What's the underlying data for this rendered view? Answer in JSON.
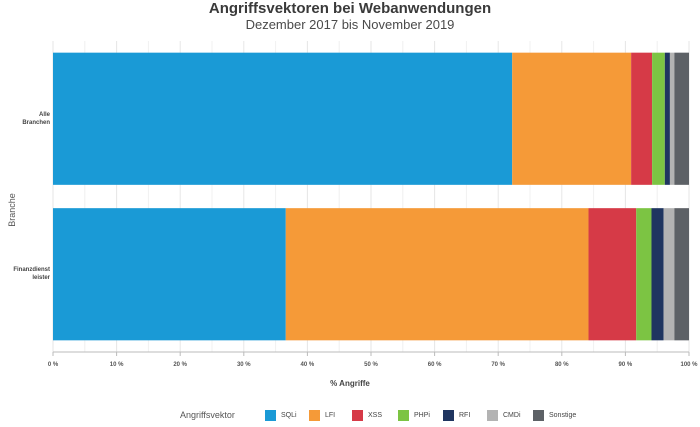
{
  "chart_data": {
    "type": "bar",
    "orientation": "horizontal",
    "stacked": true,
    "title": "Angriffsvektoren bei Webanwendungen",
    "subtitle": "Dezember 2017 bis November 2019",
    "xlabel": "% Angriffe",
    "ylabel": "Branche",
    "categories": [
      "Alle\nBranchen",
      "Finanzdienst\nleister"
    ],
    "xlim": [
      0,
      100
    ],
    "x_ticks": [
      "0 %",
      "10 %",
      "20 %",
      "30 %",
      "40 %",
      "50 %",
      "60 %",
      "70 %",
      "80 %",
      "90 %",
      "100 %"
    ],
    "grid": true,
    "legend_title": "Angriffsvektor",
    "legend_position": "bottom",
    "series": [
      {
        "name": "SQLi",
        "color": "#1a9ad6",
        "values": [
          72.2,
          36.6
        ]
      },
      {
        "name": "LFI",
        "color": "#f59a38",
        "values": [
          18.7,
          47.6
        ]
      },
      {
        "name": "XSS",
        "color": "#d63a47",
        "values": [
          3.3,
          7.5
        ]
      },
      {
        "name": "PHPi",
        "color": "#7cc443",
        "values": [
          2.0,
          2.4
        ]
      },
      {
        "name": "RFI",
        "color": "#1f3560",
        "values": [
          0.8,
          1.9
        ]
      },
      {
        "name": "CMDi",
        "color": "#b3b3b3",
        "values": [
          0.7,
          1.7
        ]
      },
      {
        "name": "Sonstige",
        "color": "#5d6166",
        "values": [
          2.3,
          2.3
        ]
      }
    ]
  }
}
